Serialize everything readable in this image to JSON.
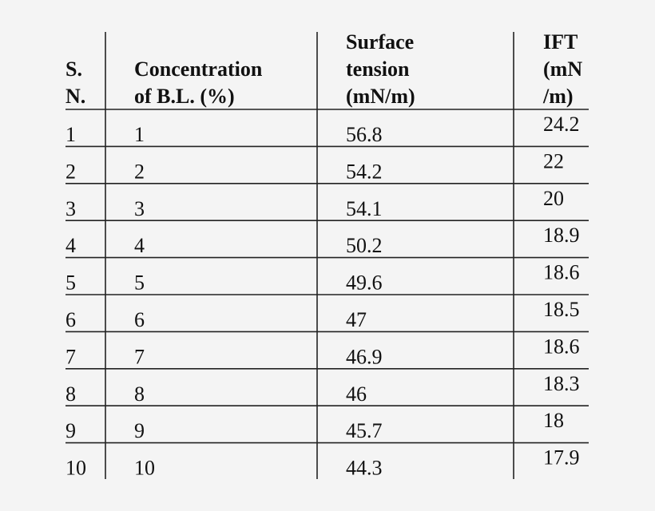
{
  "table": {
    "headers": [
      [
        "S.",
        "N."
      ],
      [
        "Concentration",
        "of B.L. (%)"
      ],
      [
        "Surface",
        "tension",
        "(mN/m)"
      ],
      [
        "IFT",
        "(mN",
        "/m)"
      ]
    ],
    "rows": [
      [
        1,
        1,
        56.8,
        24.2
      ],
      [
        2,
        2,
        54.2,
        22
      ],
      [
        3,
        3,
        54.1,
        20
      ],
      [
        4,
        4,
        50.2,
        18.9
      ],
      [
        5,
        5,
        49.6,
        18.6
      ],
      [
        6,
        6,
        47,
        18.5
      ],
      [
        7,
        7,
        46.9,
        18.6
      ],
      [
        8,
        8,
        46,
        18.3
      ],
      [
        9,
        9,
        45.7,
        18
      ],
      [
        10,
        10,
        44.3,
        17.9
      ]
    ]
  }
}
